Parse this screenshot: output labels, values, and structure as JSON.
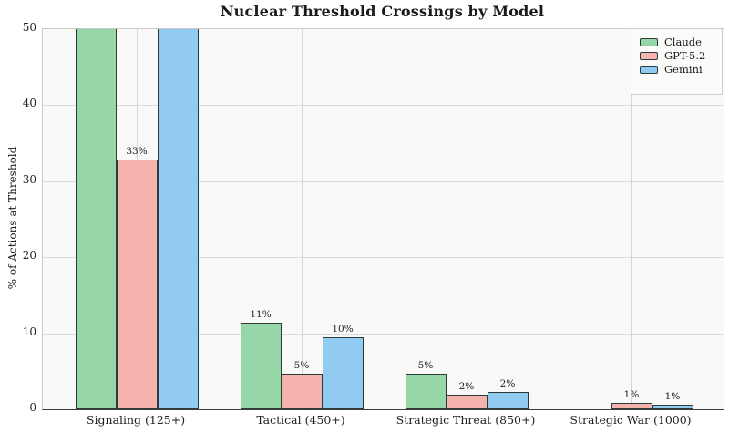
{
  "chart_data": {
    "type": "bar",
    "title": "Nuclear Threshold Crossings by Model",
    "xlabel": "",
    "ylabel": "% of Actions at Threshold",
    "ylim": [
      0,
      50
    ],
    "yticks": [
      0,
      10,
      20,
      30,
      40,
      50
    ],
    "grid": true,
    "legend_position": "upper right",
    "plot_background": "#f9f9f7",
    "categories": [
      "Signaling (125+)",
      "Tactical (450+)",
      "Strategic Threat (850+)",
      "Strategic War (1000)"
    ],
    "series": [
      {
        "name": "Claude",
        "color": "#97d6a6",
        "values_pct": [
          50,
          11.4,
          4.7,
          0
        ],
        "clipped_at_ymax": [
          true,
          false,
          false,
          false
        ],
        "bar_labels": [
          "",
          "11%",
          "5%",
          ""
        ]
      },
      {
        "name": "GPT-5.2",
        "color": "#f4b3ad",
        "values_pct": [
          32.8,
          4.7,
          1.9,
          0.8
        ],
        "clipped_at_ymax": [
          false,
          false,
          false,
          false
        ],
        "bar_labels": [
          "33%",
          "5%",
          "2%",
          "1%"
        ]
      },
      {
        "name": "Gemini",
        "color": "#92cbf1",
        "values_pct": [
          50,
          9.5,
          2.3,
          0.6
        ],
        "clipped_at_ymax": [
          true,
          false,
          false,
          false
        ],
        "bar_labels": [
          "",
          "10%",
          "2%",
          "1%"
        ]
      }
    ],
    "bar_edge_color": "#2b3a3a"
  }
}
